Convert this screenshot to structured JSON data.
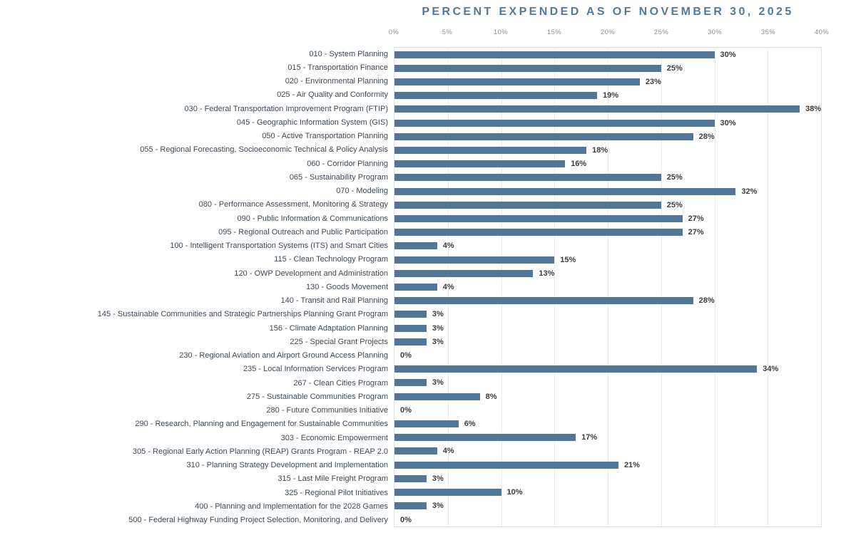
{
  "title": "PERCENT EXPENDED AS OF NOVEMBER 30, 2025",
  "colors": {
    "bar": "#527697",
    "title": "#53799c",
    "category_label": "#3e4a55",
    "value_label": "#3d3d3d",
    "tick_label": "#8e8e8e",
    "gridline": "#ececec",
    "plot_border": "#e2e2e2",
    "background": "#ffffff"
  },
  "chart_data": {
    "type": "bar",
    "orientation": "horizontal",
    "title": "PERCENT EXPENDED AS OF NOVEMBER 30, 2025",
    "xlabel": "",
    "ylabel": "",
    "xlim": [
      0,
      40
    ],
    "x_ticks": [
      "0%",
      "5%",
      "10%",
      "15%",
      "20%",
      "25%",
      "30%",
      "35%",
      "40%"
    ],
    "grid": true,
    "legend": false,
    "bar_color": "#527697",
    "categories": [
      "010 - System Planning",
      "015 - Transportation Finance",
      "020 - Environmental Planning",
      "025 - Air Quality and Conformity",
      "030 - Federal Transportation Improvement Program (FTIP)",
      "045 - Geographic Information System (GIS)",
      "050 - Active Transportation Planning",
      "055 - Regional Forecasting, Socioeconomic Technical & Policy Analysis",
      "060 - Corridor Planning",
      "065 - Sustainability Program",
      "070 - Modeling",
      "080 - Performance Assessment, Monitoring & Strategy",
      "090 - Public Information & Communications",
      "095 - Regional Outreach and Public Participation",
      "100 - Intelligent Transportation Systems (ITS) and Smart Cities",
      "115 - Clean Technology Program",
      "120 - OWP Development and Administration",
      "130 - Goods Movement",
      "140 - Transit and Rail Planning",
      "145 - Sustainable Communities and Strategic Partnerships Planning Grant Program",
      "156 - Climate Adaptation Planning",
      "225 - Special Grant Projects",
      "230 - Regional Aviation and Airport Ground Access Planning",
      "235 - Local Information Services Program",
      "267 - Clean Cities Program",
      "275 - Sustainable Communities Program",
      "280 - Future Communities Initiative",
      "290 - Research, Planning and Engagement for Sustainable Communities",
      "303 - Economic Empowerment",
      "305 - Regional Early Action Planning (REAP) Grants Program - REAP 2.0",
      "310 - Planning Strategy Development and Implementation",
      "315 - Last Mile Freight Program",
      "325 - Regional Pilot Initiatives",
      "400 - Planning and Implementation for the 2028 Games",
      "500 - Federal Highway Funding Project Selection, Monitoring, and Delivery"
    ],
    "values": [
      30,
      25,
      23,
      19,
      38,
      30,
      28,
      18,
      16,
      25,
      32,
      25,
      27,
      27,
      4,
      15,
      13,
      4,
      28,
      3,
      3,
      3,
      0,
      34,
      3,
      8,
      0,
      6,
      17,
      4,
      21,
      3,
      10,
      3,
      0
    ],
    "value_labels": [
      "30%",
      "25%",
      "23%",
      "19%",
      "38%",
      "30%",
      "28%",
      "18%",
      "16%",
      "25%",
      "32%",
      "25%",
      "27%",
      "27%",
      "4%",
      "15%",
      "13%",
      "4%",
      "28%",
      "3%",
      "3%",
      "3%",
      "0%",
      "34%",
      "3%",
      "8%",
      "0%",
      "6%",
      "17%",
      "4%",
      "21%",
      "3%",
      "10%",
      "3%",
      "0%"
    ]
  }
}
